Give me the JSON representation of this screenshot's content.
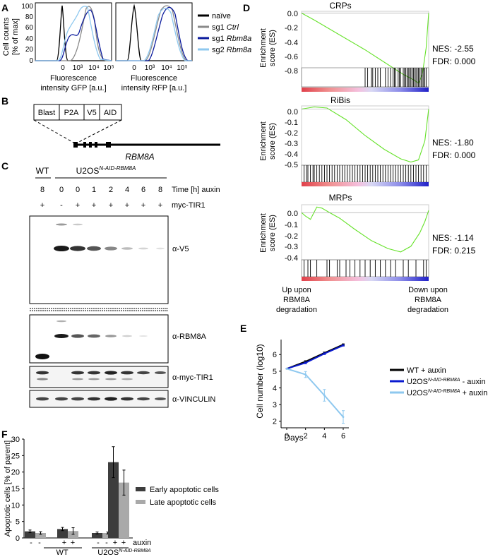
{
  "panels": {
    "A": {
      "letter": "A",
      "ylabel": [
        "Cell counts",
        "[% of max]"
      ],
      "yticks": [
        "100",
        "80",
        "60",
        "40",
        "20",
        "0"
      ],
      "xticks_gfp": [
        "0",
        "10³",
        "10⁴",
        "10⁵"
      ],
      "xticks_rfp": [
        "0",
        "10³",
        "10⁴",
        "10⁵"
      ],
      "xlabel_gfp": [
        "Fluorescence",
        "intensity GFP [a.u.]"
      ],
      "xlabel_rfp": [
        "Fluorescence",
        "intensity RFP [a.u.]"
      ],
      "legend": [
        {
          "pre": "naïve",
          "it": "",
          "color": "#000000"
        },
        {
          "pre": "sg1 ",
          "it": "Ctrl",
          "color": "#8a8a8a"
        },
        {
          "pre": "sg1 ",
          "it": "Rbm8a",
          "color": "#0a1a9c"
        },
        {
          "pre": "sg2 ",
          "it": "Rbm8a",
          "color": "#8ec8ef"
        }
      ]
    },
    "B": {
      "letter": "B",
      "cassette": [
        "Blast",
        "P2A",
        "V5",
        "AID"
      ],
      "gene": "RBM8A"
    },
    "C": {
      "letter": "C",
      "wt": "WT",
      "cell_line_base": "U2OS",
      "cell_line_sup": "N-AID-RBM8A",
      "time_label": "Time [h] auxin",
      "time_values": [
        "8",
        "0",
        "0",
        "1",
        "2",
        "4",
        "6",
        "8"
      ],
      "tir_label": "myc-TIR1",
      "tir_values": [
        "+",
        "-",
        "+",
        "+",
        "+",
        "+",
        "+",
        "+"
      ],
      "blots": [
        "α-V5",
        "α-RBM8A",
        "α-myc-TIR1",
        "α-VINCULIN"
      ]
    },
    "D": {
      "letter": "D",
      "ylabel": [
        "Enrichment",
        "score (ES)"
      ],
      "gsea": [
        {
          "title": "CRPs",
          "nes": "NES: -2.55",
          "fdr": "FDR: 0.000",
          "yticks": [
            "0.0",
            "-0.2",
            "-0.4",
            "-0.6",
            "-0.8"
          ],
          "ymin": -0.85,
          "ymax": 0.02
        },
        {
          "title": "RiBis",
          "nes": "NES: -1.80",
          "fdr": "FDR: 0.000",
          "yticks": [
            "0.0",
            "-0.1",
            "-0.2",
            "-0.3",
            "-0.4",
            "-0.5"
          ],
          "ymin": -0.53,
          "ymax": 0.03
        },
        {
          "title": "MRPs",
          "nes": "NES: -1.14",
          "fdr": "FDR: 0.215",
          "yticks": [
            "0.0",
            "-0.1",
            "-0.2",
            "-0.3",
            "-0.4"
          ],
          "ymin": -0.42,
          "ymax": 0.07
        }
      ],
      "left_caption": [
        "Up upon",
        "RBM8A",
        "degradation"
      ],
      "right_caption": [
        "Down upon",
        "RBM8A",
        "degradation"
      ]
    },
    "E": {
      "letter": "E",
      "ylabel": "Cell number (log10)",
      "xlabel": "Days",
      "xticks": [
        "0",
        "2",
        "4",
        "6"
      ],
      "yticks": [
        "6",
        "5",
        "4",
        "3",
        "2"
      ],
      "legend": [
        {
          "pre": "WT + auxin",
          "sup": "",
          "post": "",
          "color": "#000000"
        },
        {
          "pre": "U2OS",
          "sup": "N-AID-RBM8A",
          "post": " - auxin",
          "color": "#0a1ad0"
        },
        {
          "pre": "U2OS",
          "sup": "N-AID-RBM8A",
          "post": " + auxin",
          "color": "#8ec8ef"
        }
      ]
    },
    "F": {
      "letter": "F",
      "ylabel": [
        "Apoptotic cells [% of parent]"
      ],
      "yticks": [
        "30",
        "25",
        "20",
        "15",
        "10",
        "5",
        "0"
      ],
      "auxin_label": "auxin",
      "auxin_signs": [
        "-",
        "-",
        "+",
        "+",
        "-",
        "-",
        "+",
        "+"
      ],
      "group_wt": "WT",
      "group_u2os_base": "U2OS",
      "group_u2os_sup": "N-AID-RBM8A",
      "legend": [
        {
          "label": "Early apoptotic cells",
          "color": "#3d3d3d"
        },
        {
          "label": "Late apoptotic cells",
          "color": "#a9a9a9"
        }
      ]
    }
  },
  "chart_data": [
    {
      "type": "line",
      "title": "E: Cell number (log10)",
      "xlabel": "Days",
      "ylabel": "Cell number (log10)",
      "x": [
        0,
        2,
        4,
        6
      ],
      "ylim": [
        1.6,
        6.9
      ],
      "series": [
        {
          "name": "WT + auxin",
          "values": [
            5.15,
            5.58,
            6.1,
            6.6
          ],
          "errors": [
            0,
            0.05,
            0.05,
            0.04
          ]
        },
        {
          "name": "U2OS N-AID-RBM8A - auxin",
          "values": [
            5.15,
            5.5,
            6.05,
            6.55
          ],
          "errors": [
            0,
            0.05,
            0.05,
            0.04
          ]
        },
        {
          "name": "U2OS N-AID-RBM8A + auxin",
          "values": [
            5.15,
            4.8,
            3.55,
            2.25
          ],
          "errors": [
            0,
            0.18,
            0.35,
            0.38
          ]
        }
      ]
    },
    {
      "type": "bar",
      "title": "F: Apoptotic cells",
      "ylabel": "Apoptotic cells [% of parent]",
      "categories": [
        "WT - auxin",
        "WT + auxin",
        "U2OS N-AID-RBM8A - auxin",
        "U2OS N-AID-RBM8A + auxin"
      ],
      "ylim": [
        0,
        30
      ],
      "series": [
        {
          "name": "Early apoptotic cells",
          "values": [
            2.0,
            2.7,
            1.5,
            23.0
          ],
          "errors": [
            0.4,
            0.5,
            0.3,
            4.7
          ]
        },
        {
          "name": "Late apoptotic cells",
          "values": [
            1.5,
            2.1,
            1.5,
            16.8
          ],
          "errors": [
            0.4,
            1.0,
            0.3,
            3.8
          ]
        }
      ]
    }
  ]
}
